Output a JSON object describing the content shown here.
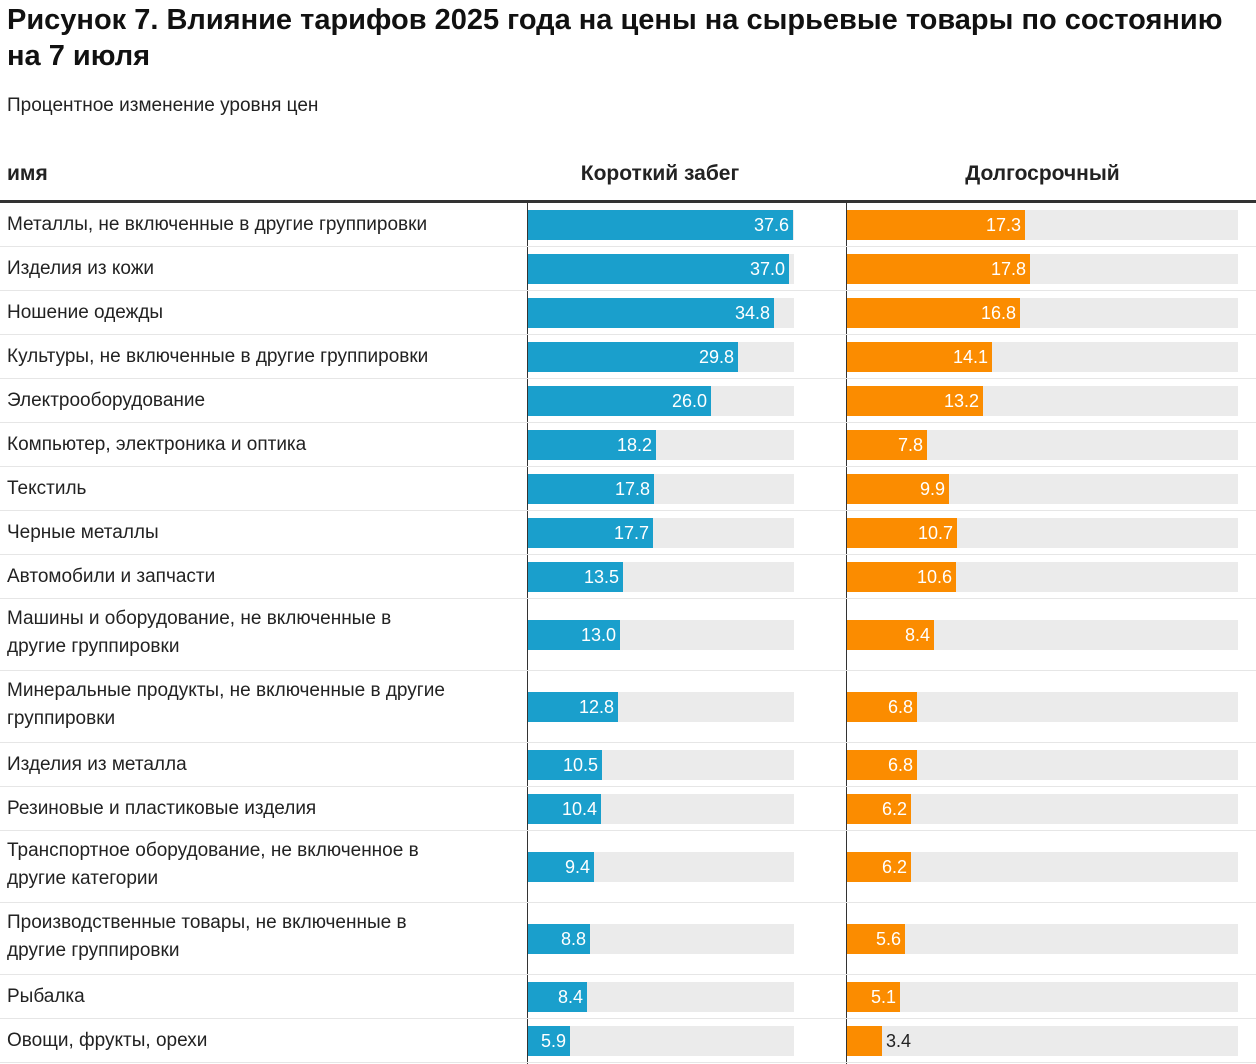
{
  "title": "Рисунок 7. Влияние тарифов 2025 года на цены на сырьевые товары по состоянию на 7 июля",
  "subtitle": "Процентное изменение уровня цен",
  "colors": {
    "short": "#1a9fcc",
    "long": "#fb8c00",
    "track": "#ebebeb"
  },
  "chart_data": {
    "type": "bar",
    "title": "Рисунок 7. Влияние тарифов 2025 года на цены на сырьевые товары по состоянию на 7 июля",
    "subtitle": "Процентное изменение уровня цен",
    "columns": {
      "name": "имя",
      "short": "Короткий забег",
      "long": "Долгосрочный"
    },
    "xlim": [
      0,
      37.7
    ],
    "categories": [
      "Металлы, не включенные в другие группировки",
      "Изделия из кожи",
      "Ношение одежды",
      "Культуры, не включенные в другие группировки",
      "Электрооборудование",
      "Компьютер, электроника и оптика",
      "Текстиль",
      "Черные металлы",
      "Автомобили и запчасти",
      "Машины и оборудование, не включенные в другие группировки",
      "Минеральные продукты, не включенные в другие группировки",
      "Изделия из металла",
      "Резиновые и пластиковые изделия",
      "Транспортное оборудование, не включенное в другие категории",
      "Производственные товары, не включенные в другие группировки",
      "Рыбалка",
      "Овощи, фрукты, орехи"
    ],
    "series": [
      {
        "name": "Короткий забег",
        "values": [
          37.6,
          37.0,
          34.8,
          29.8,
          26.0,
          18.2,
          17.8,
          17.7,
          13.5,
          13.0,
          12.8,
          10.5,
          10.4,
          9.4,
          8.8,
          8.4,
          5.9
        ]
      },
      {
        "name": "Долгосрочный",
        "values": [
          17.3,
          17.8,
          16.8,
          14.1,
          13.2,
          7.8,
          9.9,
          10.7,
          10.6,
          8.4,
          6.8,
          6.8,
          6.2,
          6.2,
          5.6,
          5.1,
          3.4
        ]
      }
    ]
  }
}
